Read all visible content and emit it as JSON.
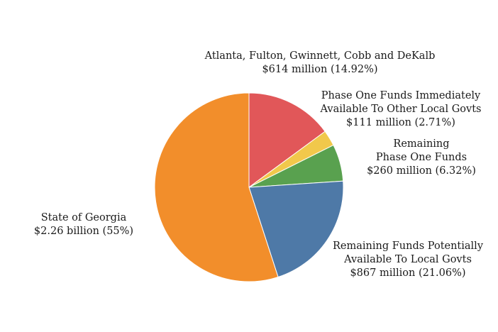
{
  "chart_data": {
    "type": "pie",
    "title": "",
    "slices": [
      {
        "label": "Atlanta, Fulton, Gwinnett, Cobb and DeKalb",
        "display_lines": [
          "Atlanta, Fulton, Gwinnett, Cobb and DeKalb",
          "$614 million (14.92%)"
        ],
        "amount": "$614 million",
        "value": 14.92,
        "color": "#e15759"
      },
      {
        "label": "Phase One Funds Immediately Available To Other Local Govts",
        "display_lines": [
          "Phase One Funds Immediately",
          "Available To Other Local Govts",
          "$111 million (2.71%)"
        ],
        "amount": "$111 million",
        "value": 2.71,
        "color": "#f1c84b"
      },
      {
        "label": "Remaining Phase One Funds",
        "display_lines": [
          "Remaining",
          "Phase One Funds",
          "$260 million (6.32%)"
        ],
        "amount": "$260 million",
        "value": 6.32,
        "color": "#59a14f"
      },
      {
        "label": "Remaining Funds Potentially Available To Local Govts",
        "display_lines": [
          "Remaining Funds Potentially",
          "Available To Local Govts",
          "$867 million (21.06%)"
        ],
        "amount": "$867 million",
        "value": 21.06,
        "color": "#4e79a7"
      },
      {
        "label": "State of Georgia",
        "display_lines": [
          "State of Georgia",
          "$2.26 billion (55%)"
        ],
        "amount": "$2.26 billion",
        "value": 55,
        "color": "#f28e2b"
      }
    ],
    "start_angle_deg": 0,
    "direction": "clockwise",
    "legend": "none"
  }
}
